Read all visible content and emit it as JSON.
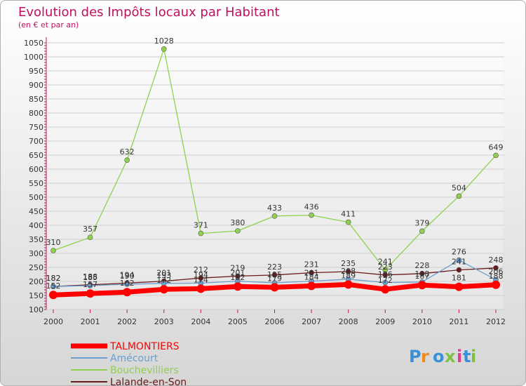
{
  "chart_data": {
    "type": "line",
    "title": "Evolution des Impôts locaux par Habitant",
    "subtitle": "(en € et par an)",
    "xlabel": "",
    "ylabel": "",
    "x": [
      "2000",
      "2001",
      "2002",
      "2003",
      "2004",
      "2005",
      "2006",
      "2007",
      "2008",
      "2009",
      "2010",
      "2011",
      "2012"
    ],
    "ylim": [
      100,
      1050
    ],
    "yticks": [
      100,
      150,
      200,
      250,
      300,
      350,
      400,
      450,
      500,
      550,
      600,
      650,
      700,
      750,
      800,
      850,
      900,
      950,
      1000,
      1050
    ],
    "series": [
      {
        "name": "TALMONTIERS",
        "color": "#ff0000",
        "values": [
          152,
          157,
          162,
          172,
          174,
          182,
          179,
          184,
          189,
          172,
          187,
          181,
          188
        ]
      },
      {
        "name": "Amécourt",
        "color": "#6a9fd0",
        "values": [
          182,
          185,
          190,
          193,
          194,
          201,
          195,
          201,
          208,
          196,
          198,
          276,
          206
        ]
      },
      {
        "name": "Bouchevilliers",
        "color": "#8fd14f",
        "values": [
          310,
          357,
          632,
          1028,
          371,
          380,
          433,
          436,
          411,
          241,
          379,
          504,
          649
        ]
      },
      {
        "name": "Lalande-en-Son",
        "color": "#6b1a1a",
        "values": [
          182,
          188,
          194,
          201,
          212,
          219,
          223,
          231,
          235,
          223,
          228,
          241,
          248
        ]
      }
    ]
  },
  "brand": {
    "logo_text": "Proxiti"
  }
}
